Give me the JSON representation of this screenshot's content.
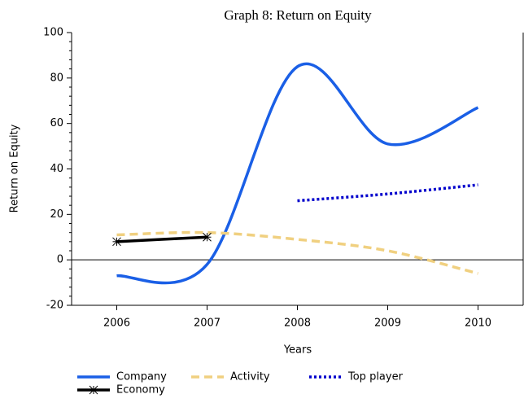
{
  "chart_data": {
    "type": "line",
    "title": "Graph 8: Return on Equity",
    "x_label": "Years",
    "y_label": "Return on Equity",
    "x": [
      2006,
      2007,
      2008,
      2009,
      2010
    ],
    "series": [
      {
        "name": "Company",
        "color": "#1a5fe6",
        "style": "solid",
        "values": [
          -7,
          -2,
          85,
          51,
          67
        ]
      },
      {
        "name": "Activity",
        "color": "#f0d080",
        "style": "dashed",
        "values": [
          11,
          12,
          9,
          4,
          -6
        ]
      },
      {
        "name": "Top player",
        "color": "#0000cc",
        "style": "dotted",
        "values": [
          null,
          null,
          26,
          29,
          33
        ]
      },
      {
        "name": "Economy",
        "color": "#000000",
        "style": "solid",
        "marker": "star",
        "values": [
          8,
          10,
          null,
          null,
          null
        ]
      }
    ],
    "xlim": [
      2005.5,
      2010.5
    ],
    "xticks": [
      2006,
      2007,
      2008,
      2009,
      2010
    ],
    "ylim": [
      -20,
      100
    ],
    "yticks": [
      -20,
      0,
      20,
      40,
      60,
      80,
      100
    ],
    "legend": "bottom"
  }
}
